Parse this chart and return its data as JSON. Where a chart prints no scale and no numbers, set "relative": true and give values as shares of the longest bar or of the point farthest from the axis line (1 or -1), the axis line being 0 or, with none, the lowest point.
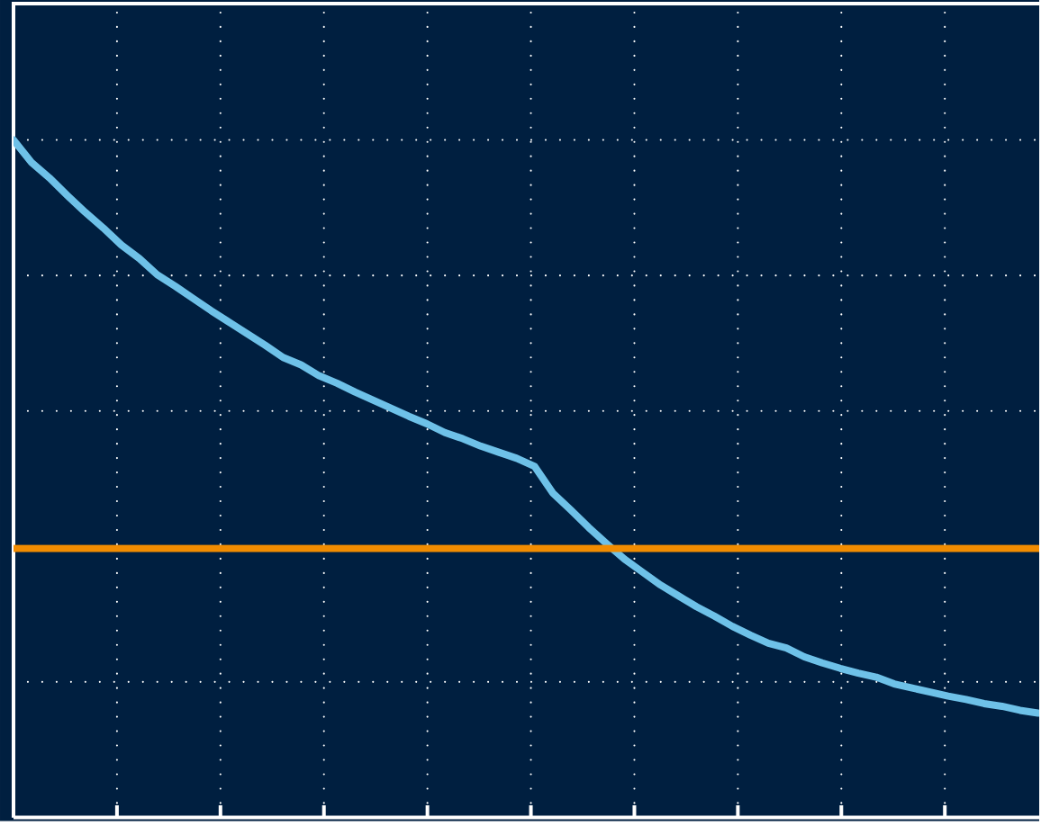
{
  "chart_data": {
    "type": "line",
    "relative": true,
    "grid": true,
    "line_style": "solid",
    "marker": "none",
    "categories": [
      null,
      null,
      null,
      null,
      null,
      null,
      null,
      null,
      null,
      null,
      null,
      null,
      null,
      null,
      null,
      null,
      null,
      null,
      null,
      null,
      null,
      null,
      null,
      null,
      null,
      null,
      null,
      null,
      null,
      null,
      null,
      null,
      null,
      null,
      null,
      null,
      null,
      null,
      null,
      null,
      null,
      null,
      null,
      null,
      null,
      null,
      null,
      null,
      null,
      null,
      null,
      null,
      null,
      null,
      null,
      null,
      null,
      null
    ],
    "series": [
      {
        "color": "#6ec1e8",
        "values": [
          1.0,
          0.967,
          0.944,
          0.918,
          0.893,
          0.87,
          0.845,
          0.825,
          0.801,
          0.784,
          0.766,
          0.748,
          0.731,
          0.714,
          0.697,
          0.679,
          0.668,
          0.652,
          0.641,
          0.628,
          0.616,
          0.604,
          0.592,
          0.581,
          0.568,
          0.559,
          0.548,
          0.539,
          0.53,
          0.518,
          0.479,
          0.454,
          0.428,
          0.404,
          0.381,
          0.362,
          0.343,
          0.327,
          0.311,
          0.297,
          0.282,
          0.269,
          0.257,
          0.25,
          0.237,
          0.228,
          0.22,
          0.213,
          0.207,
          0.197,
          0.191,
          0.185,
          0.179,
          0.174,
          0.168,
          0.164,
          0.158,
          0.154
        ]
      },
      {
        "color": "#f28c00",
        "values": [
          0.397,
          0.397,
          0.397,
          0.397,
          0.397,
          0.397,
          0.397,
          0.397,
          0.397,
          0.397,
          0.397,
          0.397,
          0.397,
          0.397,
          0.397,
          0.397,
          0.397,
          0.397,
          0.397,
          0.397,
          0.397,
          0.397,
          0.397,
          0.397,
          0.397,
          0.397,
          0.397,
          0.397,
          0.397,
          0.397,
          0.397,
          0.397,
          0.397,
          0.397,
          0.397,
          0.397,
          0.397,
          0.397,
          0.397,
          0.397,
          0.397,
          0.397,
          0.397,
          0.397,
          0.397,
          0.397,
          0.397,
          0.397,
          0.397,
          0.397,
          0.397,
          0.397,
          0.397,
          0.397,
          0.397,
          0.397,
          0.397,
          0.397
        ]
      }
    ]
  }
}
